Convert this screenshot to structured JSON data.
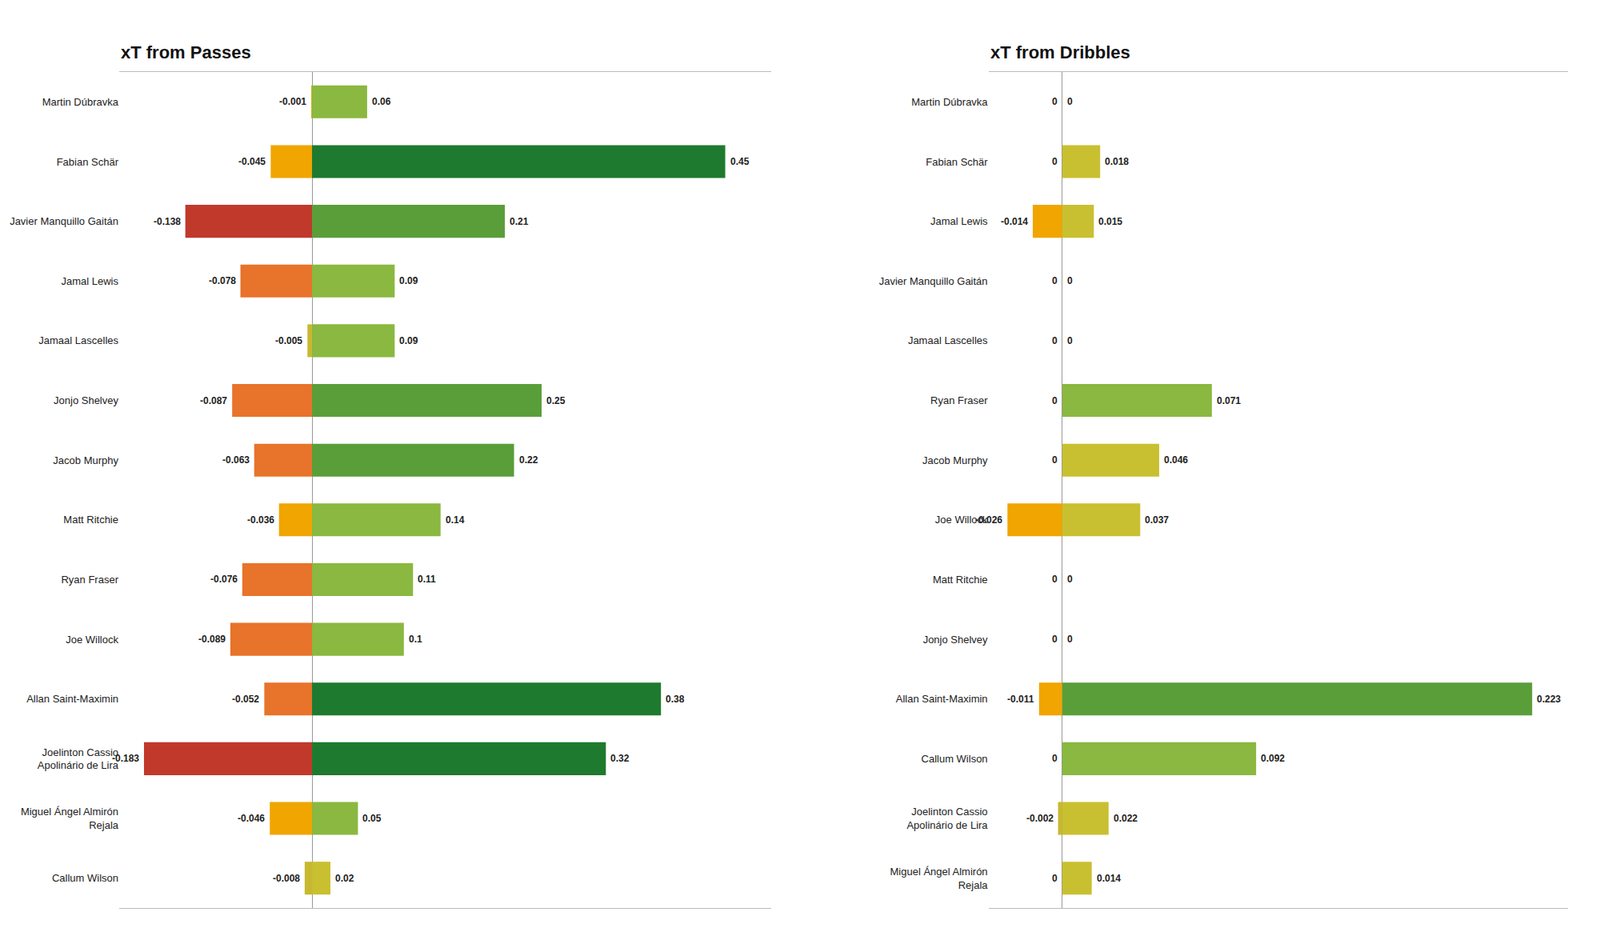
{
  "chart_data": [
    {
      "type": "bar",
      "orientation": "horizontal",
      "title": "xT from Passes",
      "categories": [
        "Martin Dúbravka",
        "Fabian Schär",
        "Javier Manquillo Gaitán",
        "Jamal Lewis",
        "Jamaal Lascelles",
        "Jonjo Shelvey",
        "Jacob Murphy",
        "Matt Ritchie",
        "Ryan Fraser",
        "Joe Willock",
        "Allan Saint-Maximin",
        "Joelinton Cassio\nApolinário de Lira",
        "Miguel Ángel Almirón\nRejala",
        "Callum Wilson"
      ],
      "series": [
        {
          "values": [
            -0.001,
            -0.045,
            -0.138,
            -0.078,
            -0.005,
            -0.087,
            -0.063,
            -0.036,
            -0.076,
            -0.089,
            -0.052,
            -0.183,
            -0.046,
            -0.008
          ],
          "colors": [
            "#c8b830",
            "#f0a500",
            "#c0392b",
            "#e8732a",
            "#c8b830",
            "#e8732a",
            "#e8732a",
            "#f0a500",
            "#e8732a",
            "#e8732a",
            "#e8732a",
            "#c0392b",
            "#f0a500",
            "#c8b830"
          ]
        },
        {
          "values": [
            0.06,
            0.45,
            0.21,
            0.09,
            0.09,
            0.25,
            0.22,
            0.14,
            0.11,
            0.1,
            0.38,
            0.32,
            0.05,
            0.02
          ],
          "colors": [
            "#8ab840",
            "#1e7a2e",
            "#5a9e3a",
            "#8ab840",
            "#8ab840",
            "#5a9e3a",
            "#5a9e3a",
            "#8ab840",
            "#8ab840",
            "#8ab840",
            "#1e7a2e",
            "#1e7a2e",
            "#8ab840",
            "#c8c030"
          ]
        }
      ],
      "xlim": [
        -0.21,
        0.5
      ],
      "tick_labels": "y",
      "grid": false,
      "data_labels": true
    },
    {
      "type": "bar",
      "orientation": "horizontal",
      "title": "xT from Dribbles",
      "categories": [
        "Martin Dúbravka",
        "Fabian Schär",
        "Jamal Lewis",
        "Javier Manquillo Gaitán",
        "Jamaal Lascelles",
        "Ryan Fraser",
        "Jacob Murphy",
        "Joe Willock",
        "Matt Ritchie",
        "Jonjo Shelvey",
        "Allan Saint-Maximin",
        "Callum Wilson",
        "Joelinton Cassio\nApolinário de Lira",
        "Miguel Ángel Almirón\nRejala"
      ],
      "series": [
        {
          "values": [
            0,
            0,
            -0.014,
            0,
            0,
            0,
            0,
            -0.026,
            0,
            0,
            -0.011,
            0,
            -0.002,
            0
          ],
          "colors": [
            "#c8b830",
            "#c8b830",
            "#f0a500",
            "#c8b830",
            "#c8b830",
            "#c8b830",
            "#c8b830",
            "#f0a500",
            "#c8b830",
            "#c8b830",
            "#f0a500",
            "#c8b830",
            "#c8b830",
            "#c8b830"
          ]
        },
        {
          "values": [
            0,
            0.018,
            0.015,
            0,
            0,
            0.071,
            0.046,
            0.037,
            0,
            0,
            0.223,
            0.092,
            0.022,
            0.014
          ],
          "colors": [
            "#c8c030",
            "#c8c030",
            "#c8c030",
            "#c8c030",
            "#c8c030",
            "#8ab840",
            "#c8c030",
            "#c8c030",
            "#c8c030",
            "#c8c030",
            "#5a9e3a",
            "#8ab840",
            "#c8c030",
            "#c8c030"
          ]
        }
      ],
      "xlim": [
        -0.035,
        0.24
      ],
      "tick_labels": "y",
      "grid": false,
      "data_labels": true
    }
  ]
}
